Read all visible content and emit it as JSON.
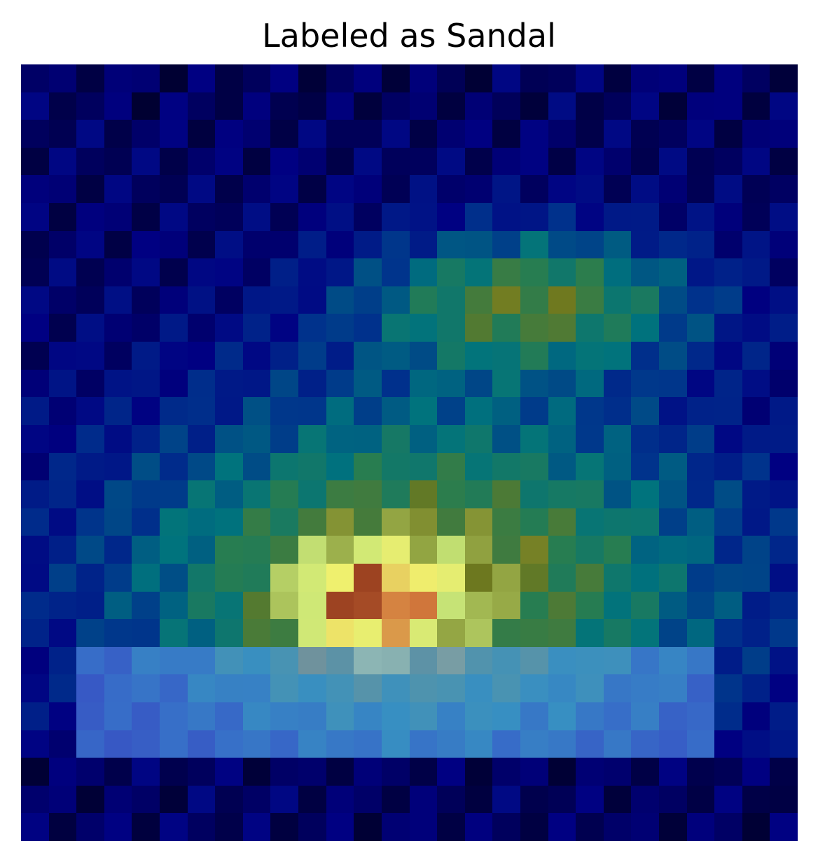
{
  "title": "Labeled as Sandal",
  "image": {
    "description_kind": "saliency heatmap overlay",
    "grid_rows": 28,
    "grid_cols": 28,
    "palette": [
      "#00003c",
      "#000080",
      "#002a8c",
      "#005a8c",
      "#007a80",
      "#2a8060",
      "#6a7a20",
      "#8a7a00",
      "#7a3000",
      "#5a0000",
      "#c8e060",
      "#a8e8b0",
      "#70e8e0",
      "#6ab0f0",
      "#7070f0",
      "#f0f070",
      "#f08a70"
    ]
  }
}
